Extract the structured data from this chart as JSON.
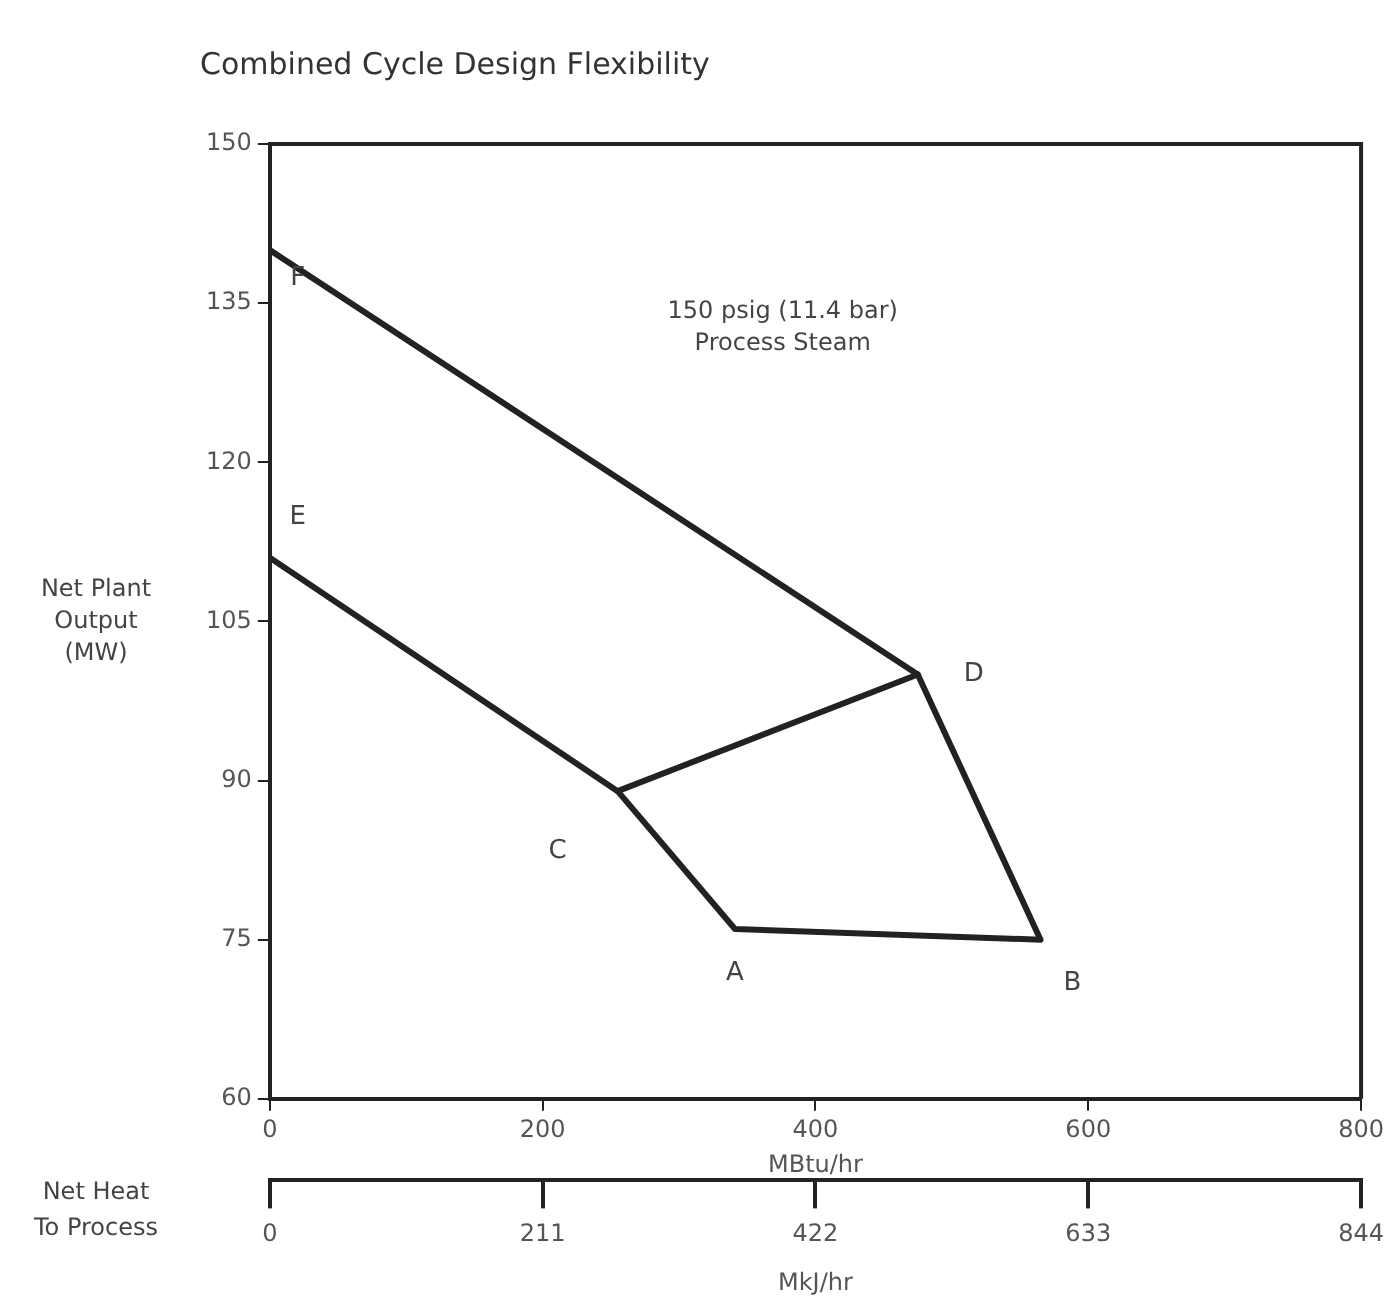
{
  "chart_data": {
    "type": "line",
    "title": "Combined Cycle Design Flexibility",
    "ylabel": "Net Plant Output (MW)",
    "xlabel": "MBtu/hr",
    "x2label": "MkJ/hr",
    "series": [
      {
        "x": [
          0,
          475,
          565,
          341,
          255,
          0
        ],
        "values": [
          140,
          100,
          75,
          76,
          89,
          111
        ],
        "color": "#222222"
      },
      {
        "x": [
          255,
          475
        ],
        "values": [
          89,
          100
        ],
        "color": "#222222"
      }
    ],
    "xlim": [
      0,
      800
    ],
    "xticks": [
      0,
      200,
      400,
      600,
      800
    ],
    "ylim": [
      60,
      150
    ],
    "yticks": [
      60,
      75,
      90,
      105,
      120,
      135,
      150
    ],
    "x2lim": [
      0,
      844
    ],
    "x2ticks": [
      0,
      211,
      422,
      633,
      844
    ],
    "grid": false,
    "legend": false,
    "marker": "none",
    "line_style": "solid",
    "annotations": [
      "150 psig (11.4 bar)\nProcess Steam",
      "Net Heat\nTo Process",
      {
        "text": "F",
        "x": 0,
        "y": 140
      },
      {
        "text": "E",
        "x": 0,
        "y": 111
      },
      {
        "text": "D",
        "x": 475,
        "y": 100
      },
      {
        "text": "C",
        "x": 255,
        "y": 89
      },
      {
        "text": "A",
        "x": 341,
        "y": 76
      },
      {
        "text": "B",
        "x": 565,
        "y": 75
      }
    ]
  }
}
